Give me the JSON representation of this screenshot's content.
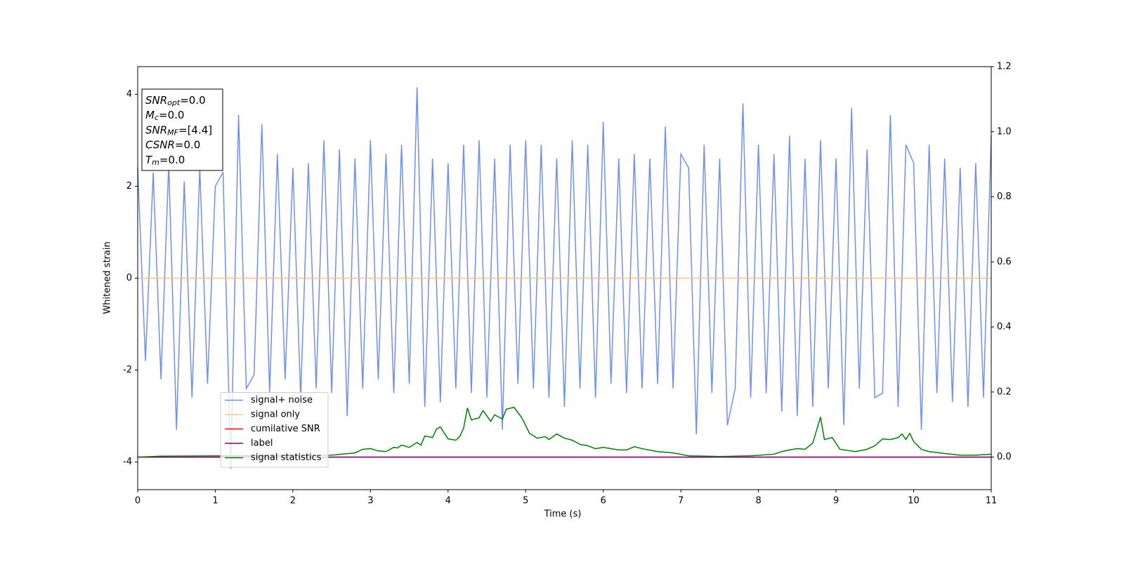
{
  "chart_data": {
    "type": "line",
    "xlabel": "Time (s)",
    "ylabel": "Whitened strain",
    "xlim": [
      0,
      11
    ],
    "xticks": [
      0,
      1,
      2,
      3,
      4,
      5,
      6,
      7,
      8,
      9,
      10,
      11
    ],
    "ylim": [
      -4.6,
      4.6
    ],
    "yticks": [
      -4,
      -2,
      0,
      2,
      4
    ],
    "y2lim": [
      -0.1,
      1.2
    ],
    "y2ticks": [
      {
        "value": 0,
        "label": "0.0"
      },
      {
        "value": 0.2,
        "label": "0.2"
      },
      {
        "value": 0.4,
        "label": "0.4"
      },
      {
        "value": 0.6,
        "label": "0.6"
      },
      {
        "value": 0.8,
        "label": "0.8"
      },
      {
        "value": 1.0,
        "label": "1.0"
      },
      {
        "value": 1.2,
        "label": "1.2"
      }
    ],
    "legend": "lower left",
    "annotations": [
      {
        "var": "SNR",
        "sub": "opt",
        "text": "=0.0"
      },
      {
        "var": "M",
        "sub": "c",
        "text": "=0.0"
      },
      {
        "var": "SNR",
        "sub": "MF",
        "text": "=[4.4]"
      },
      {
        "var": "CSNR",
        "text": "=0.0"
      },
      {
        "var": "T",
        "sub": "m",
        "text": "=0.0"
      }
    ],
    "series": [
      {
        "name": "signal+ noise",
        "color": "#7190e8",
        "x": [
          0,
          0.1,
          0.2,
          0.3,
          0.4,
          0.5,
          0.6,
          0.7,
          0.8,
          0.9,
          1,
          1.1,
          1.2,
          1.3,
          1.4,
          1.5,
          1.6,
          1.7,
          1.8,
          1.9,
          2,
          2.1,
          2.2,
          2.3,
          2.4,
          2.5,
          2.6,
          2.7,
          2.8,
          2.9,
          3,
          3.1,
          3.2,
          3.3,
          3.4,
          3.5,
          3.6,
          3.7,
          3.8,
          3.9,
          4,
          4.1,
          4.2,
          4.3,
          4.4,
          4.5,
          4.6,
          4.7,
          4.8,
          4.9,
          5,
          5.1,
          5.2,
          5.3,
          5.4,
          5.5,
          5.6,
          5.7,
          5.8,
          5.9,
          6,
          6.1,
          6.2,
          6.3,
          6.4,
          6.5,
          6.6,
          6.7,
          6.8,
          6.9,
          7,
          7.1,
          7.2,
          7.3,
          7.4,
          7.5,
          7.6,
          7.7,
          7.8,
          7.9,
          8,
          8.1,
          8.2,
          8.3,
          8.4,
          8.5,
          8.6,
          8.7,
          8.8,
          8.9,
          9,
          9.1,
          9.2,
          9.3,
          9.4,
          9.5,
          9.6,
          9.7,
          9.8,
          9.9,
          10,
          10.1,
          10.2,
          10.3,
          10.4,
          10.5,
          10.6,
          10.7,
          10.8,
          10.9,
          11
        ],
        "values": [
          2.4,
          -1.8,
          2.3,
          -2.2,
          2.5,
          -3.3,
          2.1,
          -2.6,
          2.4,
          -2.3,
          2.0,
          2.3,
          -4.15,
          3.55,
          -2.4,
          -2.1,
          3.35,
          -2.5,
          2.7,
          -2.2,
          2.4,
          -2.6,
          2.5,
          -2.4,
          3.0,
          -2.5,
          2.8,
          -3.0,
          2.6,
          -2.4,
          3.0,
          -2.2,
          2.7,
          -2.5,
          2.9,
          -2.3,
          4.15,
          -2.8,
          2.6,
          -2.7,
          2.5,
          -2.4,
          2.9,
          -2.5,
          3.0,
          -2.6,
          2.6,
          -3.3,
          2.9,
          -2.3,
          3.0,
          -2.4,
          2.9,
          -2.6,
          2.6,
          -2.8,
          3.0,
          -2.4,
          2.9,
          -2.6,
          3.4,
          -2.3,
          2.6,
          -2.5,
          2.7,
          -2.4,
          2.6,
          -2.3,
          3.3,
          -2.4,
          2.7,
          2.4,
          -3.4,
          2.9,
          -2.5,
          2.6,
          -3.2,
          -2.4,
          3.8,
          -2.6,
          2.9,
          -2.5,
          2.7,
          -2.9,
          3.1,
          -3.0,
          2.6,
          -2.8,
          3.0,
          -2.4,
          2.6,
          -3.2,
          3.7,
          -2.4,
          2.8,
          -2.6,
          -2.5,
          3.55,
          -2.8,
          2.9,
          2.5,
          -3.3,
          2.9,
          -2.5,
          2.6,
          -2.7,
          2.4,
          -2.8,
          2.5,
          -2.6,
          3.1
        ]
      },
      {
        "name": "signal only",
        "color": "#ffc870",
        "x": [
          0,
          11
        ],
        "values": [
          0,
          0
        ]
      },
      {
        "name": "cumilative SNR",
        "color": "#ff0000",
        "axis": "y2",
        "x": [
          0,
          11
        ],
        "values": [
          0,
          0
        ]
      },
      {
        "name": "label",
        "color": "#800080",
        "axis": "y2",
        "x": [
          0,
          11
        ],
        "values": [
          0,
          0
        ]
      },
      {
        "name": "signal statistics",
        "color": "#008000",
        "axis": "y2",
        "x": [
          0,
          0.3,
          2.5,
          2.8,
          2.9,
          3.0,
          3.1,
          3.2,
          3.3,
          3.35,
          3.4,
          3.5,
          3.6,
          3.65,
          3.7,
          3.8,
          3.85,
          3.9,
          4.0,
          4.1,
          4.15,
          4.2,
          4.25,
          4.3,
          4.4,
          4.45,
          4.55,
          4.6,
          4.7,
          4.75,
          4.85,
          4.95,
          5.05,
          5.15,
          5.25,
          5.3,
          5.4,
          5.5,
          5.6,
          5.7,
          5.8,
          5.9,
          6.0,
          6.2,
          6.3,
          6.4,
          6.5,
          6.7,
          6.9,
          7.1,
          7.5,
          7.9,
          8.2,
          8.3,
          8.4,
          8.5,
          8.6,
          8.7,
          8.8,
          8.85,
          8.95,
          9.05,
          9.25,
          9.4,
          9.5,
          9.6,
          9.7,
          9.8,
          9.85,
          9.9,
          9.95,
          10.0,
          10.1,
          10.2,
          10.4,
          10.6,
          10.8,
          11.0
        ],
        "values": [
          0.0,
          0.003,
          0.006,
          0.013,
          0.024,
          0.026,
          0.019,
          0.017,
          0.03,
          0.028,
          0.037,
          0.03,
          0.045,
          0.037,
          0.065,
          0.06,
          0.086,
          0.093,
          0.056,
          0.052,
          0.063,
          0.089,
          0.151,
          0.114,
          0.121,
          0.143,
          0.11,
          0.13,
          0.117,
          0.147,
          0.153,
          0.121,
          0.073,
          0.058,
          0.063,
          0.054,
          0.071,
          0.058,
          0.052,
          0.039,
          0.035,
          0.026,
          0.03,
          0.022,
          0.022,
          0.032,
          0.026,
          0.017,
          0.013,
          0.004,
          0.002,
          0.004,
          0.009,
          0.017,
          0.022,
          0.026,
          0.024,
          0.043,
          0.123,
          0.054,
          0.06,
          0.024,
          0.017,
          0.024,
          0.035,
          0.056,
          0.054,
          0.06,
          0.071,
          0.054,
          0.073,
          0.048,
          0.024,
          0.017,
          0.011,
          0.006,
          0.006,
          0.009
        ]
      }
    ]
  }
}
